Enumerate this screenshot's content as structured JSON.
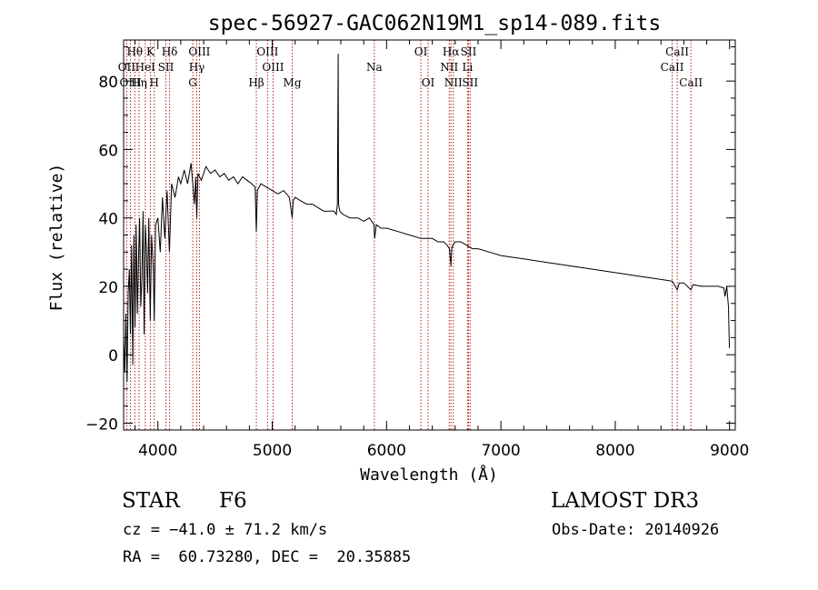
{
  "chart_data": {
    "type": "line",
    "title": "spec-56927-GAC062N19M1_sp14-089.fits",
    "xlabel": "Wavelength (Å)",
    "ylabel": "Flux (relative)",
    "xlim": [
      3700,
      9050
    ],
    "ylim": [
      -22,
      92
    ],
    "x_ticks": [
      4000,
      5000,
      6000,
      7000,
      8000,
      9000
    ],
    "x_tick_labels": [
      "4000",
      "5000",
      "6000",
      "7000",
      "8000",
      "9000"
    ],
    "y_ticks": [
      -20,
      0,
      20,
      40,
      60,
      80
    ],
    "y_tick_labels": [
      "−20",
      "0",
      "20",
      "40",
      "60",
      "80"
    ],
    "grid": false,
    "series": [
      {
        "name": "flux",
        "color": "#000000",
        "x": [
          3700,
          3710,
          3720,
          3730,
          3740,
          3750,
          3760,
          3770,
          3780,
          3790,
          3800,
          3810,
          3820,
          3830,
          3840,
          3850,
          3860,
          3870,
          3880,
          3890,
          3900,
          3910,
          3920,
          3933,
          3945,
          3960,
          3968,
          3980,
          4000,
          4020,
          4040,
          4060,
          4080,
          4101,
          4120,
          4150,
          4180,
          4200,
          4230,
          4260,
          4290,
          4310,
          4320,
          4330,
          4340,
          4350,
          4380,
          4420,
          4460,
          4500,
          4540,
          4580,
          4620,
          4660,
          4700,
          4740,
          4780,
          4820,
          4850,
          4861,
          4870,
          4900,
          4950,
          5000,
          5050,
          5100,
          5150,
          5175,
          5183,
          5200,
          5250,
          5300,
          5350,
          5400,
          5450,
          5500,
          5540,
          5560,
          5570,
          5577,
          5580,
          5590,
          5620,
          5680,
          5750,
          5800,
          5850,
          5890,
          5896,
          5910,
          5950,
          6000,
          6100,
          6200,
          6300,
          6400,
          6450,
          6500,
          6530,
          6550,
          6563,
          6570,
          6580,
          6600,
          6650,
          6700,
          6750,
          6800,
          6900,
          7000,
          7100,
          7200,
          7300,
          7400,
          7500,
          7600,
          7700,
          7800,
          7900,
          8000,
          8100,
          8200,
          8300,
          8400,
          8500,
          8542,
          8560,
          8600,
          8662,
          8680,
          8750,
          8800,
          8850,
          8900,
          8950,
          8960,
          8975,
          8990,
          8998
        ],
        "values": [
          5,
          -5,
          12,
          -8,
          18,
          25,
          6,
          32,
          -3,
          35,
          8,
          38,
          12,
          28,
          40,
          14,
          22,
          42,
          6,
          38,
          30,
          18,
          40,
          10,
          35,
          25,
          10,
          38,
          40,
          30,
          46,
          34,
          48,
          30,
          50,
          46,
          52,
          50,
          54,
          50,
          56,
          48,
          44,
          52,
          40,
          53,
          51,
          55,
          53,
          54,
          52,
          53,
          51,
          52,
          50,
          52,
          51,
          50,
          49,
          36,
          48,
          50,
          49,
          48,
          47,
          48,
          46,
          40,
          45,
          46,
          45,
          44,
          44,
          43,
          42,
          42,
          42,
          41,
          44,
          88,
          44,
          42,
          41,
          40,
          40,
          39,
          40,
          38,
          34,
          38,
          37,
          37,
          36,
          35,
          34,
          34,
          33,
          33,
          32,
          31,
          26,
          31,
          32,
          33,
          33,
          32,
          31,
          31,
          30,
          29,
          28.5,
          28,
          27.5,
          27,
          26.5,
          26,
          25.5,
          25,
          24.5,
          24,
          23.5,
          23,
          22.5,
          22,
          21.5,
          19,
          21,
          21,
          19,
          20.5,
          20,
          20,
          20,
          20,
          19.5,
          17,
          20,
          14,
          2
        ]
      }
    ],
    "line_labels": [
      {
        "text": "Hθ",
        "x": 3798,
        "row": 1,
        "color": "#000000"
      },
      {
        "text": "K",
        "x": 3934,
        "row": 1,
        "color": "#000000"
      },
      {
        "text": "Hδ",
        "x": 4102,
        "row": 1,
        "color": "#000000"
      },
      {
        "text": "OIII",
        "x": 4363,
        "row": 1,
        "color": "#000000"
      },
      {
        "text": "OIII",
        "x": 4959,
        "row": 1,
        "color": "#000000"
      },
      {
        "text": "OI",
        "x": 6300,
        "row": 1,
        "color": "#000000"
      },
      {
        "text": "Hα",
        "x": 6563,
        "row": 1,
        "color": "#000000"
      },
      {
        "text": "SII",
        "x": 6717,
        "row": 1,
        "color": "#000000"
      },
      {
        "text": "CaII",
        "x": 8542,
        "row": 1,
        "color": "#000000"
      },
      {
        "text": "OII",
        "x": 3727,
        "row": 2,
        "color": "#000000"
      },
      {
        "text": "HeI",
        "x": 3889,
        "row": 2,
        "color": "#000000"
      },
      {
        "text": "SII",
        "x": 4070,
        "row": 2,
        "color": "#000000"
      },
      {
        "text": "Hγ",
        "x": 4340,
        "row": 2,
        "color": "#000000"
      },
      {
        "text": "OIII",
        "x": 5007,
        "row": 2,
        "color": "#000000"
      },
      {
        "text": "Na",
        "x": 5893,
        "row": 2,
        "color": "#000000"
      },
      {
        "text": "NII",
        "x": 6548,
        "row": 2,
        "color": "#000000"
      },
      {
        "text": "Li",
        "x": 6708,
        "row": 2,
        "color": "#000000"
      },
      {
        "text": "CaII",
        "x": 8498,
        "row": 2,
        "color": "#000000"
      },
      {
        "text": "OIII",
        "x": 3760,
        "row": 3,
        "color": "#000000"
      },
      {
        "text": "Hη",
        "x": 3835,
        "row": 3,
        "color": "#000000"
      },
      {
        "text": "H",
        "x": 3968,
        "row": 3,
        "color": "#000000"
      },
      {
        "text": "G",
        "x": 4305,
        "row": 3,
        "color": "#000000"
      },
      {
        "text": "Hβ",
        "x": 4861,
        "row": 3,
        "color": "#000000"
      },
      {
        "text": "Mg",
        "x": 5175,
        "row": 3,
        "color": "#000000"
      },
      {
        "text": "OI",
        "x": 6363,
        "row": 3,
        "color": "#000000"
      },
      {
        "text": "NII",
        "x": 6584,
        "row": 3,
        "color": "#000000"
      },
      {
        "text": "SII",
        "x": 6731,
        "row": 3,
        "color": "#000000"
      },
      {
        "text": "CaII",
        "x": 8662,
        "row": 3,
        "color": "#000000"
      }
    ],
    "line_marker_color": "#b22222"
  },
  "info": {
    "object_class": "STAR",
    "subclass": "F6",
    "survey": "LAMOST DR3",
    "redshift": "cz = −41.0 ± 71.2 km/s",
    "obs_date": "Obs-Date: 20140926",
    "coords": "RA =  60.73280, DEC =  20.35885"
  }
}
